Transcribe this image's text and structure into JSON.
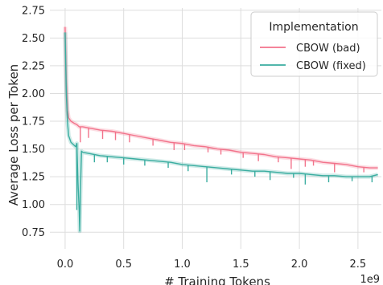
{
  "chart_data": {
    "type": "line",
    "title": "",
    "xlabel": "# Training Tokens",
    "ylabel": "Average Loss per Token",
    "x_offset_label": "1e9",
    "xlim": [
      -0.13,
      2.7
    ],
    "ylim": [
      0.6,
      2.77
    ],
    "x_ticks": [
      0.0,
      0.5,
      1.0,
      1.5,
      2.0,
      2.5
    ],
    "x_tick_labels": [
      "0.0",
      "0.5",
      "1.0",
      "1.5",
      "2.0",
      "2.5"
    ],
    "y_ticks": [
      0.75,
      1.0,
      1.25,
      1.5,
      1.75,
      2.0,
      2.25,
      2.5,
      2.75
    ],
    "y_tick_labels": [
      "0.75",
      "1.00",
      "1.25",
      "1.50",
      "1.75",
      "2.00",
      "2.25",
      "2.50",
      "2.75"
    ],
    "grid": true,
    "legend": {
      "title": "Implementation",
      "placement": "top-right"
    },
    "series": [
      {
        "name": "CBOW (bad)",
        "color": "#f2738b",
        "points": [
          [
            0.0,
            2.6
          ],
          [
            0.01,
            2.1
          ],
          [
            0.02,
            1.85
          ],
          [
            0.03,
            1.78
          ],
          [
            0.05,
            1.75
          ],
          [
            0.08,
            1.73
          ],
          [
            0.1,
            1.72
          ],
          [
            0.12,
            1.7
          ],
          [
            0.15,
            1.7
          ],
          [
            0.2,
            1.69
          ],
          [
            0.3,
            1.67
          ],
          [
            0.4,
            1.66
          ],
          [
            0.5,
            1.64
          ],
          [
            0.6,
            1.62
          ],
          [
            0.7,
            1.6
          ],
          [
            0.8,
            1.58
          ],
          [
            0.9,
            1.56
          ],
          [
            1.0,
            1.55
          ],
          [
            1.1,
            1.53
          ],
          [
            1.2,
            1.52
          ],
          [
            1.3,
            1.5
          ],
          [
            1.4,
            1.49
          ],
          [
            1.5,
            1.47
          ],
          [
            1.6,
            1.46
          ],
          [
            1.7,
            1.45
          ],
          [
            1.8,
            1.43
          ],
          [
            1.9,
            1.42
          ],
          [
            2.0,
            1.41
          ],
          [
            2.1,
            1.4
          ],
          [
            2.2,
            1.38
          ],
          [
            2.3,
            1.37
          ],
          [
            2.4,
            1.36
          ],
          [
            2.5,
            1.34
          ],
          [
            2.6,
            1.33
          ],
          [
            2.67,
            1.33
          ]
        ],
        "spikes": [
          [
            0.13,
            1.56
          ],
          [
            0.2,
            1.6
          ],
          [
            0.32,
            1.59
          ],
          [
            0.43,
            1.58
          ],
          [
            0.55,
            1.56
          ],
          [
            0.75,
            1.53
          ],
          [
            0.93,
            1.49
          ],
          [
            1.02,
            1.49
          ],
          [
            1.22,
            1.47
          ],
          [
            1.33,
            1.45
          ],
          [
            1.52,
            1.42
          ],
          [
            1.65,
            1.39
          ],
          [
            1.82,
            1.38
          ],
          [
            1.93,
            1.32
          ],
          [
            2.05,
            1.34
          ],
          [
            2.12,
            1.35
          ],
          [
            2.3,
            1.29
          ],
          [
            2.55,
            1.29
          ]
        ]
      },
      {
        "name": "CBOW (fixed)",
        "color": "#3aada0",
        "points": [
          [
            0.0,
            2.55
          ],
          [
            0.01,
            2.0
          ],
          [
            0.02,
            1.75
          ],
          [
            0.03,
            1.62
          ],
          [
            0.05,
            1.56
          ],
          [
            0.07,
            1.54
          ],
          [
            0.09,
            1.52
          ],
          [
            0.1,
            1.55
          ],
          [
            0.11,
            1.2
          ],
          [
            0.12,
            0.95
          ],
          [
            0.125,
            0.76
          ],
          [
            0.13,
            1.1
          ],
          [
            0.14,
            1.48
          ],
          [
            0.15,
            1.47
          ],
          [
            0.2,
            1.46
          ],
          [
            0.3,
            1.44
          ],
          [
            0.4,
            1.43
          ],
          [
            0.5,
            1.42
          ],
          [
            0.6,
            1.41
          ],
          [
            0.7,
            1.4
          ],
          [
            0.8,
            1.39
          ],
          [
            0.9,
            1.38
          ],
          [
            1.0,
            1.36
          ],
          [
            1.1,
            1.35
          ],
          [
            1.2,
            1.34
          ],
          [
            1.3,
            1.33
          ],
          [
            1.4,
            1.32
          ],
          [
            1.5,
            1.31
          ],
          [
            1.6,
            1.3
          ],
          [
            1.7,
            1.3
          ],
          [
            1.8,
            1.29
          ],
          [
            1.9,
            1.28
          ],
          [
            2.0,
            1.28
          ],
          [
            2.1,
            1.27
          ],
          [
            2.2,
            1.26
          ],
          [
            2.3,
            1.26
          ],
          [
            2.4,
            1.25
          ],
          [
            2.5,
            1.25
          ],
          [
            2.6,
            1.25
          ],
          [
            2.67,
            1.27
          ]
        ],
        "spikes": [
          [
            0.1,
            0.95
          ],
          [
            0.25,
            1.38
          ],
          [
            0.36,
            1.38
          ],
          [
            0.5,
            1.36
          ],
          [
            0.68,
            1.35
          ],
          [
            0.88,
            1.33
          ],
          [
            1.05,
            1.3
          ],
          [
            1.21,
            1.2
          ],
          [
            1.42,
            1.27
          ],
          [
            1.62,
            1.25
          ],
          [
            1.75,
            1.22
          ],
          [
            1.95,
            1.24
          ],
          [
            2.05,
            1.18
          ],
          [
            2.25,
            1.2
          ],
          [
            2.45,
            1.21
          ],
          [
            2.62,
            1.2
          ]
        ]
      }
    ]
  }
}
